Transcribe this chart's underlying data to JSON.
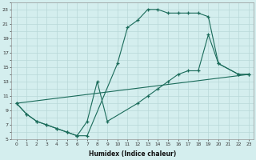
{
  "xlabel": "Humidex (Indice chaleur)",
  "bg_color": "#d4eeee",
  "grid_color": "#b8d8d8",
  "line_color": "#1a6b5a",
  "xlim": [
    -0.5,
    23.5
  ],
  "ylim": [
    5,
    24
  ],
  "line1_x": [
    0,
    1,
    2,
    3,
    4,
    5,
    6,
    7,
    10,
    11,
    12,
    13,
    14,
    15,
    16,
    17,
    18,
    19,
    20,
    22,
    23
  ],
  "line1_y": [
    10,
    8.5,
    7.5,
    7,
    6.5,
    6,
    5.5,
    5.5,
    15.5,
    20.5,
    21.5,
    23,
    23,
    22.5,
    22.5,
    22.5,
    22.5,
    22,
    15.5,
    14,
    14
  ],
  "line2_x": [
    0,
    1,
    2,
    3,
    4,
    5,
    6,
    7,
    8,
    9,
    12,
    13,
    14,
    15,
    16,
    17,
    18,
    19,
    20,
    22,
    23
  ],
  "line2_y": [
    10,
    8.5,
    7.5,
    7,
    6.5,
    6,
    5.5,
    7.5,
    13,
    7.5,
    10,
    11,
    12,
    13,
    14,
    14.5,
    14.5,
    19.5,
    15.5,
    14,
    14
  ],
  "line3_x": [
    0,
    23
  ],
  "line3_y": [
    10,
    14
  ]
}
